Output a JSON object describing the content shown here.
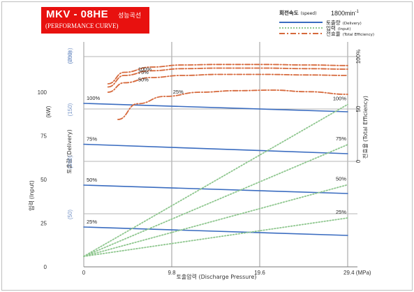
{
  "header": {
    "title": "MKV - 08HE",
    "title_kr": "성능곡선",
    "subtitle": "(PERFORMANCE CURVE)"
  },
  "legend": {
    "speed_label_kr": "회전속도",
    "speed_label_en": "(speed)",
    "speed_value": "1800min",
    "speed_value_sup": "-1",
    "entries": [
      {
        "kr": "토출량",
        "en": "(Delivery)",
        "style": "solid",
        "color": "#3a6cc0"
      },
      {
        "kr": "입력",
        "en": "(Input)",
        "style": "dotted",
        "color": "#8fc78f"
      },
      {
        "kr": "전효율",
        "en": "(Total Efficiency)",
        "style": "dashdot",
        "color": "#d6693c"
      }
    ]
  },
  "chart_data": {
    "type": "line",
    "title": "MKV - 08HE 성능곡선 (PERFORMANCE CURVE)",
    "xlabel": "토출압력 (Discharge Pressure)",
    "x_ticks": [
      "0",
      "9.8",
      "19.6",
      "29.4 (MPa)"
    ],
    "xlim": [
      0,
      29.4
    ],
    "axes": {
      "input": {
        "label_kr": "입력",
        "label_en": "(Input)",
        "unit": "(kW)",
        "ticks": [
          "0",
          "25",
          "50",
          "75",
          "100"
        ],
        "range": [
          0,
          140
        ]
      },
      "delivery": {
        "label_kr": "토출량",
        "label_en": "(Delivery)",
        "unit": "(ℓ/min)",
        "ticks": [
          "(50)",
          "(100)",
          "(150)",
          "(200)"
        ],
        "range": [
          0,
          210
        ]
      },
      "efficiency": {
        "label_kr": "전효율",
        "label_en": "(Total Efficiency)",
        "unit": "%",
        "ticks": [
          "0",
          "50",
          "100%"
        ],
        "range": [
          0,
          100
        ]
      }
    },
    "grid": true,
    "series": [
      {
        "group": "delivery",
        "name": "100%",
        "x": [
          0,
          29.4
        ],
        "y": [
          156,
          148
        ]
      },
      {
        "group": "delivery",
        "name": "75%",
        "x": [
          0,
          29.4
        ],
        "y": [
          117,
          108
        ]
      },
      {
        "group": "delivery",
        "name": "50%",
        "x": [
          0,
          29.4
        ],
        "y": [
          78,
          70
        ]
      },
      {
        "group": "delivery",
        "name": "25%",
        "x": [
          0,
          29.4
        ],
        "y": [
          38,
          30
        ]
      },
      {
        "group": "input",
        "name": "100%",
        "x": [
          0,
          29.4
        ],
        "y": [
          6,
          93
        ]
      },
      {
        "group": "input",
        "name": "75%",
        "x": [
          0,
          29.4
        ],
        "y": [
          6,
          70
        ]
      },
      {
        "group": "input",
        "name": "50%",
        "x": [
          0,
          29.4
        ],
        "y": [
          6,
          47
        ]
      },
      {
        "group": "input",
        "name": "25%",
        "x": [
          0,
          29.4
        ],
        "y": [
          6,
          28
        ]
      },
      {
        "group": "efficiency",
        "name": "100%",
        "x": [
          2.7,
          4.5,
          7.5,
          11,
          15,
          20,
          25,
          29.4
        ],
        "y": [
          74,
          85,
          90,
          92,
          92.5,
          92.5,
          92,
          91.5
        ]
      },
      {
        "group": "efficiency",
        "name": "75%",
        "x": [
          2.7,
          4.5,
          7.5,
          11,
          15,
          20,
          25,
          29.4
        ],
        "y": [
          71,
          82,
          86.5,
          88.5,
          89,
          89,
          88.5,
          88
        ]
      },
      {
        "group": "efficiency",
        "name": "50%",
        "x": [
          2.7,
          4.5,
          7.5,
          11,
          15,
          20,
          25,
          29.4
        ],
        "y": [
          66,
          75,
          80,
          82,
          83,
          83,
          82.5,
          82
        ]
      },
      {
        "group": "efficiency",
        "name": "25%",
        "x": [
          3.8,
          6,
          9,
          13,
          17,
          21,
          25,
          29.4
        ],
        "y": [
          40,
          55,
          62,
          66,
          67.5,
          68,
          66.5,
          64
        ]
      }
    ]
  }
}
